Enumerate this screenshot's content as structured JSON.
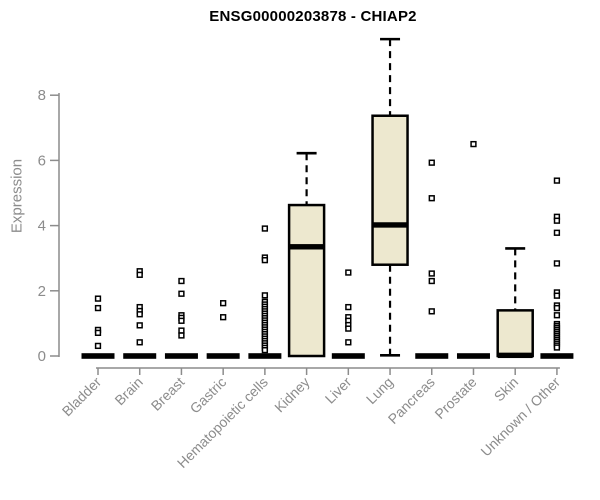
{
  "chart_data": {
    "type": "boxplot",
    "title": "ENSG00000203878 - CHIAP2",
    "ylabel": "Expression",
    "xlabel": "",
    "yticks": [
      0,
      2,
      4,
      6,
      8
    ],
    "ylim": [
      0,
      9.8
    ],
    "grid": false,
    "legend": "none",
    "colors": {
      "box_fill": "#EDE8CF",
      "box_stroke": "#000000",
      "axis": "#8c8c8c",
      "title": "#000000",
      "outlier_fill": "#ffffff"
    },
    "categories": [
      "Bladder",
      "Brain",
      "Breast",
      "Gastric",
      "Hematopoietic cells",
      "Kidney",
      "Liver",
      "Lung",
      "Pancreas",
      "Prostate",
      "Skin",
      "Unknown / Other"
    ],
    "boxes": [
      {
        "category": "Bladder",
        "q1": 0,
        "median": 0,
        "q3": 0,
        "whisker_low": 0,
        "whisker_high": 0,
        "outliers": [
          1.76,
          1.47,
          0.8,
          0.71,
          0.31
        ]
      },
      {
        "category": "Brain",
        "q1": 0,
        "median": 0,
        "q3": 0,
        "whisker_low": 0,
        "whisker_high": 0,
        "outliers": [
          2.6,
          2.49,
          1.5,
          1.38,
          1.28,
          0.94,
          0.42
        ]
      },
      {
        "category": "Breast",
        "q1": 0,
        "median": 0,
        "q3": 0,
        "whisker_low": 0,
        "whisker_high": 0,
        "outliers": [
          2.3,
          1.91,
          1.25,
          1.17,
          1.08,
          0.78,
          0.63
        ]
      },
      {
        "category": "Gastric",
        "q1": 0,
        "median": 0,
        "q3": 0,
        "whisker_low": 0,
        "whisker_high": 0,
        "outliers": [
          1.62,
          1.19
        ]
      },
      {
        "category": "Hematopoietic cells",
        "q1": 0,
        "median": 0,
        "q3": 0,
        "whisker_low": 0,
        "whisker_high": 0,
        "outliers": [
          3.91,
          3.02,
          2.94,
          1.86,
          1.66,
          1.58,
          1.51,
          1.44,
          1.37,
          1.3,
          1.23,
          1.16,
          1.09,
          1.02,
          0.95,
          0.88,
          0.81,
          0.74,
          0.67,
          0.6,
          0.53,
          0.46,
          0.39,
          0.32,
          0.25,
          0.18
        ]
      },
      {
        "category": "Kidney",
        "q1": 0,
        "median": 3.35,
        "q3": 4.63,
        "whisker_low": 0,
        "whisker_high": 6.22,
        "outliers": []
      },
      {
        "category": "Liver",
        "q1": 0,
        "median": 0,
        "q3": 0,
        "whisker_low": 0,
        "whisker_high": 0,
        "outliers": [
          2.56,
          1.5,
          1.19,
          1.08,
          0.95,
          0.84,
          0.42
        ]
      },
      {
        "category": "Lung",
        "q1": 2.8,
        "median": 4.02,
        "q3": 7.37,
        "whisker_low": 0.02,
        "whisker_high": 9.72,
        "outliers": []
      },
      {
        "category": "Pancreas",
        "q1": 0,
        "median": 0,
        "q3": 0,
        "whisker_low": 0,
        "whisker_high": 0,
        "outliers": [
          5.93,
          4.84,
          2.53,
          2.3,
          1.37
        ]
      },
      {
        "category": "Prostate",
        "q1": 0,
        "median": 0,
        "q3": 0,
        "whisker_low": 0,
        "whisker_high": 0,
        "outliers": [
          6.5
        ]
      },
      {
        "category": "Skin",
        "q1": 0,
        "median": 0.02,
        "q3": 1.4,
        "whisker_low": 0,
        "whisker_high": 3.3,
        "outliers": []
      },
      {
        "category": "Unknown / Other",
        "q1": 0,
        "median": 0,
        "q3": 0,
        "whisker_low": 0,
        "whisker_high": 0,
        "outliers": [
          5.38,
          4.27,
          4.15,
          3.78,
          2.84,
          1.95,
          1.85,
          1.55,
          1.47,
          1.25,
          0.98,
          0.92,
          0.86,
          0.8,
          0.74,
          0.68,
          0.62,
          0.56,
          0.5,
          0.44,
          0.38,
          0.32,
          0.26
        ]
      }
    ]
  }
}
